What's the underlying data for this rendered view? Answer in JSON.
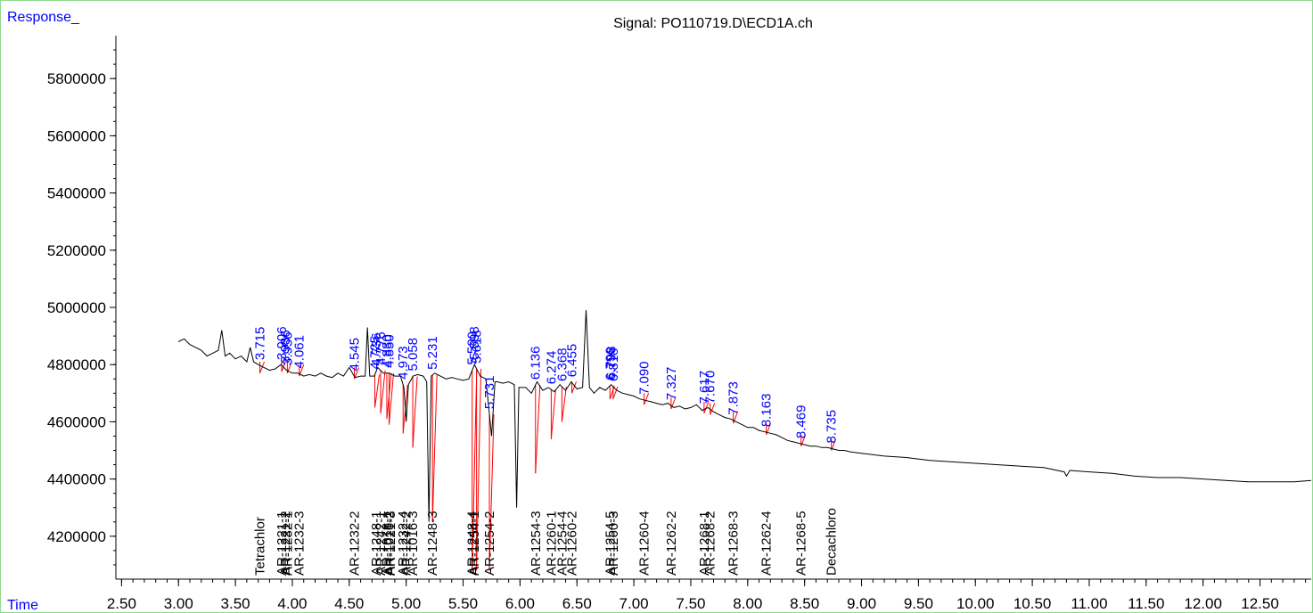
{
  "chart_data": {
    "type": "line",
    "title": "Signal: PO110719.D\\ECD1A.ch",
    "ylabel": "Response_",
    "xlabel": "Time",
    "xlim": [
      2.45,
      12.95
    ],
    "ylim": [
      4050000,
      5950000
    ],
    "x_ticks": [
      "2.50",
      "3.00",
      "3.50",
      "4.00",
      "4.50",
      "5.00",
      "5.50",
      "6.00",
      "6.50",
      "7.00",
      "7.50",
      "8.00",
      "8.50",
      "9.00",
      "9.50",
      "10.00",
      "10.50",
      "11.00",
      "11.50",
      "12.00",
      "12.50"
    ],
    "y_ticks": [
      "4200000",
      "4400000",
      "4600000",
      "4800000",
      "5000000",
      "5200000",
      "5400000",
      "5600000",
      "5800000"
    ],
    "colors": {
      "trace": "#000000",
      "integration": "#ff0000",
      "rt_label": "#0000ff",
      "frame": "#8fd98f"
    },
    "series": [
      {
        "values": [
          [
            3.0,
            4880000
          ],
          [
            3.05,
            4890000
          ],
          [
            3.1,
            4870000
          ],
          [
            3.15,
            4860000
          ],
          [
            3.2,
            4850000
          ],
          [
            3.25,
            4830000
          ],
          [
            3.3,
            4840000
          ],
          [
            3.35,
            4850000
          ],
          [
            3.38,
            4920000
          ],
          [
            3.41,
            4830000
          ],
          [
            3.45,
            4840000
          ],
          [
            3.5,
            4820000
          ],
          [
            3.55,
            4830000
          ],
          [
            3.6,
            4810000
          ],
          [
            3.63,
            4860000
          ],
          [
            3.66,
            4810000
          ],
          [
            3.7,
            4800000
          ],
          [
            3.75,
            4790000
          ],
          [
            3.8,
            4780000
          ],
          [
            3.85,
            4785000
          ],
          [
            3.9,
            4800000
          ],
          [
            3.95,
            4780000
          ],
          [
            4.0,
            4770000
          ],
          [
            4.05,
            4770000
          ],
          [
            4.1,
            4760000
          ],
          [
            4.15,
            4765000
          ],
          [
            4.2,
            4760000
          ],
          [
            4.25,
            4770000
          ],
          [
            4.3,
            4760000
          ],
          [
            4.35,
            4755000
          ],
          [
            4.4,
            4770000
          ],
          [
            4.45,
            4760000
          ],
          [
            4.5,
            4790000
          ],
          [
            4.55,
            4755000
          ],
          [
            4.6,
            4760000
          ],
          [
            4.64,
            4760000
          ],
          [
            4.66,
            4930000
          ],
          [
            4.68,
            4760000
          ],
          [
            4.72,
            4760000
          ],
          [
            4.75,
            4790000
          ],
          [
            4.8,
            4770000
          ],
          [
            4.85,
            4770000
          ],
          [
            4.9,
            4760000
          ],
          [
            4.95,
            4760000
          ],
          [
            4.98,
            4720000
          ],
          [
            5.0,
            4600000
          ],
          [
            5.02,
            4730000
          ],
          [
            5.06,
            4760000
          ],
          [
            5.1,
            4765000
          ],
          [
            5.15,
            4760000
          ],
          [
            5.18,
            4740000
          ],
          [
            5.2,
            4250000
          ],
          [
            5.22,
            4760000
          ],
          [
            5.25,
            4770000
          ],
          [
            5.3,
            4760000
          ],
          [
            5.35,
            4750000
          ],
          [
            5.4,
            4755000
          ],
          [
            5.45,
            4750000
          ],
          [
            5.5,
            4745000
          ],
          [
            5.55,
            4750000
          ],
          [
            5.6,
            4800000
          ],
          [
            5.65,
            4760000
          ],
          [
            5.7,
            4750000
          ],
          [
            5.75,
            4550000
          ],
          [
            5.78,
            4740000
          ],
          [
            5.8,
            4740000
          ],
          [
            5.85,
            4735000
          ],
          [
            5.9,
            4740000
          ],
          [
            5.95,
            4730000
          ],
          [
            5.97,
            4300000
          ],
          [
            5.99,
            4720000
          ],
          [
            6.05,
            4720000
          ],
          [
            6.1,
            4700000
          ],
          [
            6.15,
            4740000
          ],
          [
            6.2,
            4710000
          ],
          [
            6.25,
            4720000
          ],
          [
            6.3,
            4705000
          ],
          [
            6.35,
            4730000
          ],
          [
            6.4,
            4710000
          ],
          [
            6.45,
            4740000
          ],
          [
            6.5,
            4715000
          ],
          [
            6.55,
            4720000
          ],
          [
            6.58,
            4990000
          ],
          [
            6.61,
            4720000
          ],
          [
            6.65,
            4700000
          ],
          [
            6.7,
            4720000
          ],
          [
            6.75,
            4710000
          ],
          [
            6.8,
            4730000
          ],
          [
            6.85,
            4710000
          ],
          [
            6.9,
            4700000
          ],
          [
            6.95,
            4695000
          ],
          [
            7.0,
            4690000
          ],
          [
            7.05,
            4680000
          ],
          [
            7.1,
            4675000
          ],
          [
            7.15,
            4670000
          ],
          [
            7.2,
            4665000
          ],
          [
            7.25,
            4660000
          ],
          [
            7.3,
            4665000
          ],
          [
            7.35,
            4650000
          ],
          [
            7.4,
            4655000
          ],
          [
            7.45,
            4645000
          ],
          [
            7.5,
            4650000
          ],
          [
            7.55,
            4660000
          ],
          [
            7.6,
            4640000
          ],
          [
            7.65,
            4650000
          ],
          [
            7.7,
            4635000
          ],
          [
            7.75,
            4625000
          ],
          [
            7.8,
            4615000
          ],
          [
            7.85,
            4610000
          ],
          [
            7.9,
            4600000
          ],
          [
            7.95,
            4590000
          ],
          [
            8.0,
            4580000
          ],
          [
            8.05,
            4580000
          ],
          [
            8.1,
            4570000
          ],
          [
            8.15,
            4565000
          ],
          [
            8.2,
            4560000
          ],
          [
            8.25,
            4555000
          ],
          [
            8.3,
            4545000
          ],
          [
            8.35,
            4535000
          ],
          [
            8.4,
            4530000
          ],
          [
            8.45,
            4525000
          ],
          [
            8.5,
            4520000
          ],
          [
            8.55,
            4515000
          ],
          [
            8.6,
            4515000
          ],
          [
            8.65,
            4510000
          ],
          [
            8.7,
            4510000
          ],
          [
            8.75,
            4505000
          ],
          [
            8.8,
            4500000
          ],
          [
            8.85,
            4500000
          ],
          [
            8.9,
            4495000
          ],
          [
            9.0,
            4490000
          ],
          [
            9.2,
            4480000
          ],
          [
            9.4,
            4475000
          ],
          [
            9.6,
            4465000
          ],
          [
            9.8,
            4460000
          ],
          [
            10.0,
            4455000
          ],
          [
            10.2,
            4450000
          ],
          [
            10.4,
            4445000
          ],
          [
            10.6,
            4440000
          ],
          [
            10.78,
            4425000
          ],
          [
            10.8,
            4410000
          ],
          [
            10.83,
            4430000
          ],
          [
            11.0,
            4425000
          ],
          [
            11.2,
            4420000
          ],
          [
            11.4,
            4410000
          ],
          [
            11.6,
            4405000
          ],
          [
            11.8,
            4405000
          ],
          [
            12.0,
            4400000
          ],
          [
            12.2,
            4395000
          ],
          [
            12.4,
            4390000
          ],
          [
            12.6,
            4390000
          ],
          [
            12.8,
            4390000
          ],
          [
            12.95,
            4395000
          ]
        ]
      }
    ],
    "rt_labels": [
      "3.715",
      "3.906",
      "3.936",
      "3.956",
      "4.061",
      "4.545",
      "4.725",
      "4.736",
      "4.776",
      "4.830",
      "4.850",
      "4.973",
      "5.058",
      "5.231",
      "5.580",
      "5.598",
      "5.618",
      "5.731",
      "6.136",
      "6.274",
      "6.368",
      "6.455",
      "6.790",
      "6.798",
      "6.818",
      "7.090",
      "7.327",
      "7.617",
      "7.670",
      "7.873",
      "8.163",
      "8.469",
      "8.735"
    ],
    "compound_labels": [
      "Tetrachlor",
      "AR-1221-1",
      "AR-1221-2",
      "AR-1232-1",
      "AR-1232-3",
      "AR-1232-2",
      "AR-1248-1",
      "AR-1242-1",
      "AR-1016-1",
      "AR-1016-2",
      "AR-1221-3",
      "AR-1232-4",
      "AR-1242-2",
      "AR-1016-3",
      "AR-1248-3",
      "AR-1248-4",
      "AR-1254-1",
      "AR-1254-2",
      "AR-1254-3",
      "AR-1260-1",
      "AR-1254-4",
      "AR-1260-2",
      "AR-1254-5",
      "AR-1260-3",
      "AR-1260-4",
      "AR-1262-2",
      "AR-1268-1",
      "AR-1268-2",
      "AR-1268-3",
      "AR-1262-4",
      "AR-1268-5",
      "Decachloro"
    ],
    "integration_peaks": [
      {
        "rt": 3.715,
        "floor": 4770000
      },
      {
        "rt": 3.906,
        "floor": 4775000
      },
      {
        "rt": 3.956,
        "floor": 4770000
      },
      {
        "rt": 4.061,
        "floor": 4760000
      },
      {
        "rt": 4.545,
        "floor": 4750000
      },
      {
        "rt": 4.725,
        "floor": 4650000
      },
      {
        "rt": 4.776,
        "floor": 4630000
      },
      {
        "rt": 4.83,
        "floor": 4610000
      },
      {
        "rt": 4.85,
        "floor": 4590000
      },
      {
        "rt": 4.973,
        "floor": 4560000
      },
      {
        "rt": 5.058,
        "floor": 4510000
      },
      {
        "rt": 5.231,
        "floor": 4250000
      },
      {
        "rt": 5.58,
        "floor": 4080000
      },
      {
        "rt": 5.618,
        "floor": 4080000
      },
      {
        "rt": 5.731,
        "floor": 4080000
      },
      {
        "rt": 6.136,
        "floor": 4420000
      },
      {
        "rt": 6.274,
        "floor": 4540000
      },
      {
        "rt": 6.368,
        "floor": 4600000
      },
      {
        "rt": 6.455,
        "floor": 4700000
      },
      {
        "rt": 6.79,
        "floor": 4680000
      },
      {
        "rt": 6.818,
        "floor": 4680000
      },
      {
        "rt": 7.09,
        "floor": 4660000
      },
      {
        "rt": 7.327,
        "floor": 4645000
      },
      {
        "rt": 7.617,
        "floor": 4630000
      },
      {
        "rt": 7.67,
        "floor": 4625000
      },
      {
        "rt": 7.873,
        "floor": 4595000
      },
      {
        "rt": 8.163,
        "floor": 4555000
      },
      {
        "rt": 8.469,
        "floor": 4515000
      },
      {
        "rt": 8.735,
        "floor": 4500000
      }
    ]
  }
}
